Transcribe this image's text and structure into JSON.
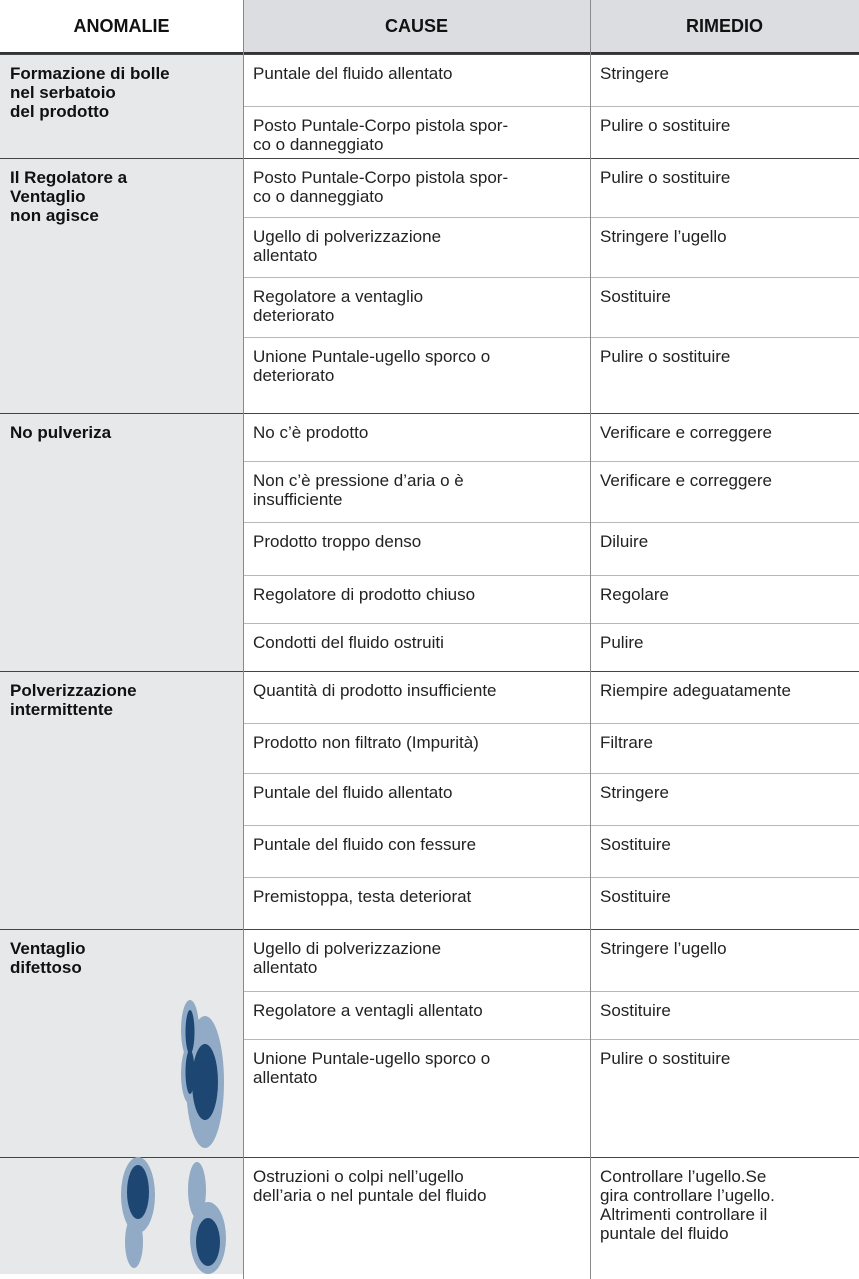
{
  "header": [
    "ANOMALIE",
    "CAUSE",
    "RIMEDIO"
  ],
  "groups": [
    {
      "anomaly": "Formazione di bolle\nnel serbatoio\ndel prodotto",
      "rows": [
        {
          "cause": "Puntale del fluido allentato",
          "remedy": "Stringere"
        },
        {
          "cause": "Posto Puntale-Corpo pistola spor-\nco o danneggiato",
          "remedy": "Pulire o sostituire"
        }
      ]
    },
    {
      "anomaly": "Il Regolatore a\nVentaglio\nnon agisce",
      "rows": [
        {
          "cause": "Posto Puntale-Corpo pistola spor-\nco o danneggiato",
          "remedy": "Pulire o sostituire"
        },
        {
          "cause": "Ugello di polverizzazione\nallentato",
          "remedy": "Stringere l’ugello"
        },
        {
          "cause": "Regolatore a ventaglio\ndeteriorato",
          "remedy": "Sostituire"
        },
        {
          "cause": "Unione Puntale-ugello sporco o\ndeteriorato",
          "remedy": "Pulire o sostituire"
        }
      ]
    },
    {
      "anomaly": "No pulveriza",
      "rows": [
        {
          "cause": "No c’è prodotto",
          "remedy": "Verificare e correggere"
        },
        {
          "cause": "Non c’è pressione d’aria o è\ninsufficiente",
          "remedy": "Verificare e correggere"
        },
        {
          "cause": "Prodotto troppo denso",
          "remedy": "Diluire"
        },
        {
          "cause": "Regolatore di prodotto chiuso",
          "remedy": "Regolare"
        },
        {
          "cause": "Condotti del  fluido ostruiti",
          "remedy": "Pulire"
        }
      ]
    },
    {
      "anomaly": "Polverizzazione\nintermittente",
      "rows": [
        {
          "cause": "Quantità di prodotto insufficiente",
          "remedy": "Riempire adeguatamente"
        },
        {
          "cause": "Prodotto non filtrato (Impurità)",
          "remedy": "Filtrare"
        },
        {
          "cause": "Puntale del fluido allentato",
          "remedy": "Stringere"
        },
        {
          "cause": "Puntale del fluido con fessure",
          "remedy": "Sostituire"
        },
        {
          "cause": "Premistoppa, testa deteriorat",
          "remedy": "Sostituire"
        }
      ]
    },
    {
      "anomaly": "Ventaglio\ndifettoso",
      "rows": [
        {
          "cause": "Ugello di polverizzazione\nallentato",
          "remedy": "Stringere l’ugello"
        },
        {
          "cause": "Regolatore a ventagli allentato",
          "remedy": "Sostituire"
        },
        {
          "cause": "Unione Puntale-ugello sporco o\nallentato",
          "remedy": "Pulire o sostituire"
        }
      ]
    },
    {
      "rows": [
        {
          "cause": "Ostruzioni o colpi nell’ugello\ndell’aria o nel puntale del fluido",
          "remedy": "Controllare l’ugello.Se\ngira controllare l’ugello.\nAltrimenti controllare il\npuntale del fluido"
        }
      ]
    }
  ]
}
